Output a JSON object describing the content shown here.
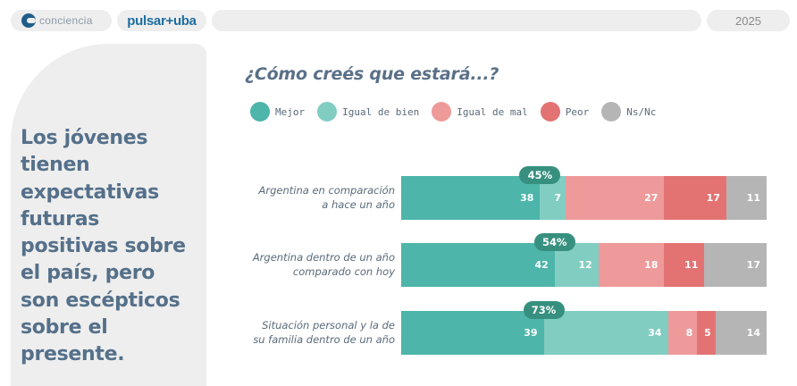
{
  "header": {
    "brand1": "conciencia",
    "brand2": "pulsar+uba",
    "year": "2025"
  },
  "side": {
    "headline": "Los jóvenes tienen expectativas futuras positivas sobre el país, pero son escépticos sobre el presente."
  },
  "colors": {
    "Mejor": "#4db5aa",
    "Igual de bien": "#82cdc2",
    "Igual de mal": "#ee9a9a",
    "Peor": "#e37373",
    "Ns/Nc": "#b5b5b5",
    "badge": "#37907f"
  },
  "chart_data": {
    "type": "bar",
    "orientation": "horizontal",
    "stacked": true,
    "title": "¿Cómo creés que estará...?",
    "legend_position": "top-left",
    "categories": [
      "Argentina en comparación a hace un año",
      "Argentina dentro de un año comparado con hoy",
      "Situación personal y la de su familia dentro de un año"
    ],
    "category_lines": [
      [
        "Argentina en comparación",
        "a hace un año"
      ],
      [
        "Argentina dentro de un año",
        "comparado con hoy"
      ],
      [
        "Situación personal y la de",
        "su familia dentro de un año"
      ]
    ],
    "series": [
      {
        "name": "Mejor",
        "values": [
          38,
          42,
          39
        ]
      },
      {
        "name": "Igual de bien",
        "values": [
          7,
          12,
          34
        ]
      },
      {
        "name": "Igual de mal",
        "values": [
          27,
          18,
          8
        ]
      },
      {
        "name": "Peor",
        "values": [
          17,
          11,
          5
        ]
      },
      {
        "name": "Ns/Nc",
        "values": [
          11,
          17,
          14
        ]
      }
    ],
    "totals_positive": [
      "45%",
      "54%",
      "73%"
    ],
    "xlim": [
      0,
      100
    ]
  }
}
